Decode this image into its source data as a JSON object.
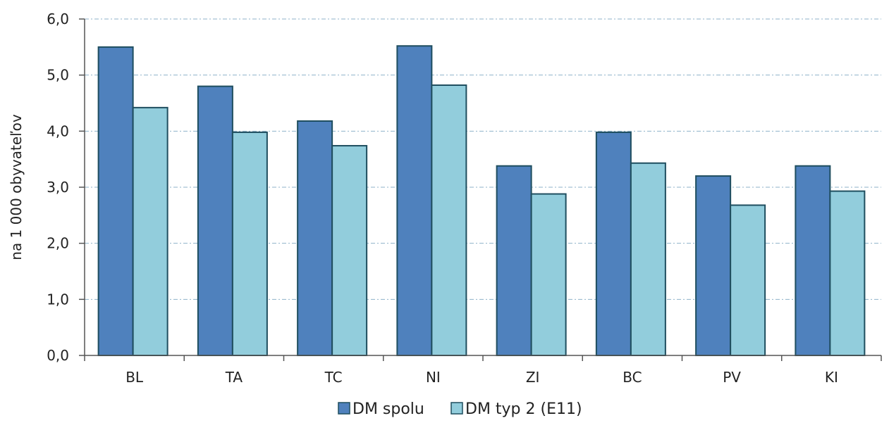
{
  "chart_data": {
    "type": "bar",
    "title": "",
    "xlabel": "",
    "ylabel": "na 1 000 obyvateľov",
    "categories": [
      "BL",
      "TA",
      "TC",
      "NI",
      "ZI",
      "BC",
      "PV",
      "KI"
    ],
    "series": [
      {
        "name": "DM spolu",
        "color": "#4f81bd",
        "values": [
          5.5,
          4.8,
          4.18,
          5.52,
          3.38,
          3.98,
          3.2,
          3.38
        ]
      },
      {
        "name": "DM typ 2 (E11)",
        "color": "#92cddc",
        "values": [
          4.42,
          3.98,
          3.74,
          4.82,
          2.88,
          3.43,
          2.68,
          2.93
        ]
      }
    ],
    "ylim": [
      0,
      6
    ],
    "yticks": [
      "0,0",
      "1,0",
      "2,0",
      "3,0",
      "4,0",
      "5,0",
      "6,0"
    ],
    "grid": true,
    "legend_position": "bottom",
    "bar_stroke": "#1f4e5f"
  }
}
